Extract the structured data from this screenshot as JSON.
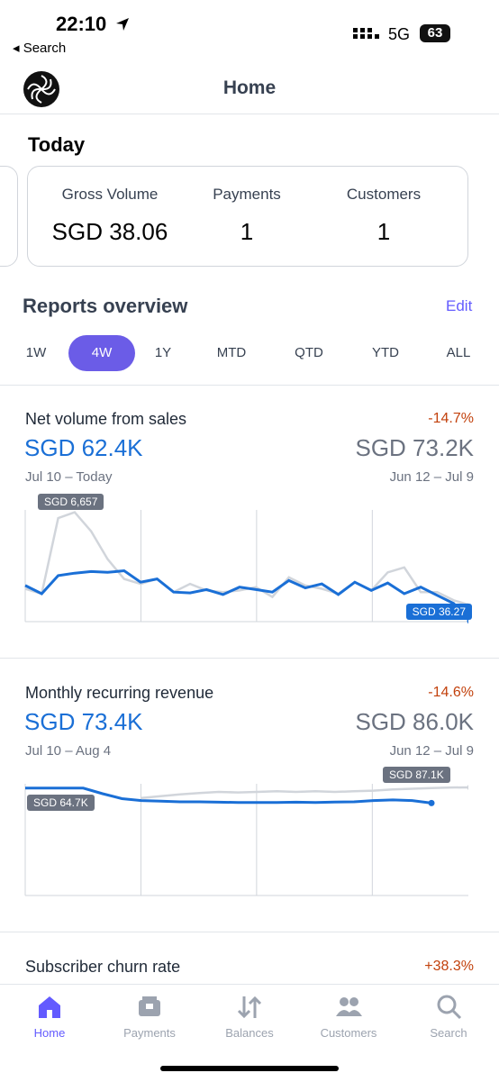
{
  "status": {
    "time": "22:10",
    "back": "◂ Search",
    "network": "5G",
    "battery": "63"
  },
  "nav": {
    "title": "Home"
  },
  "today": {
    "title": "Today",
    "metrics": [
      {
        "label": "Gross Volume",
        "value": "SGD 38.06"
      },
      {
        "label": "Payments",
        "value": "1"
      },
      {
        "label": "Customers",
        "value": "1"
      }
    ]
  },
  "reports": {
    "title": "Reports overview",
    "edit": "Edit",
    "periods": [
      "1W",
      "4W",
      "1Y",
      "MTD",
      "QTD",
      "YTD",
      "ALL"
    ],
    "active": 1
  },
  "cards": [
    {
      "title": "Net volume from sales",
      "change": "-14.7%",
      "current": "SGD 62.4K",
      "previous": "SGD 73.2K",
      "current_range": "Jul 10 – Today",
      "previous_range": "Jun 12 – Jul 9",
      "chart": {
        "type": "line",
        "ylim": [
          0,
          6800
        ],
        "annotations": [
          "SGD 6,657",
          "SGD 36.27"
        ],
        "series": [
          {
            "color": "#d1d5db",
            "values": [
              2000,
              1700,
              6300,
              6657,
              5500,
              3800,
              2600,
              2300,
              2600,
              1800,
              2300,
              1900,
              1800,
              1900,
              2100,
              1500,
              2700,
              2200,
              2000,
              1700,
              2400,
              1900,
              3000,
              3300,
              1800,
              1800,
              1300,
              1000
            ]
          },
          {
            "color": "#1a6fd6",
            "values": [
              2200,
              1700,
              2800,
              2950,
              3050,
              3000,
              3100,
              2400,
              2600,
              1800,
              1750,
              1950,
              1650,
              2100,
              1950,
              1800,
              2500,
              2050,
              2300,
              1650,
              2400,
              1900,
              2350,
              1700,
              2100,
              1600,
              1100,
              36.27
            ]
          }
        ]
      }
    },
    {
      "title": "Monthly recurring revenue",
      "change": "-14.6%",
      "current": "SGD 73.4K",
      "previous": "SGD 86.0K",
      "current_range": "Jul 10 – Aug 4",
      "previous_range": "Jun 12 – Jul 9",
      "chart": {
        "type": "line",
        "ylim": [
          0,
          90000
        ],
        "annotations": [
          "SGD 64.7K",
          "SGD 87.1K"
        ],
        "series": [
          {
            "color": "#d1d5db",
            "values": [
              null,
              null,
              null,
              null,
              null,
              null,
              78500,
              80000,
              81500,
              82500,
              83500,
              83000,
              83500,
              84000,
              83500,
              84000,
              83500,
              84000,
              84500,
              85500,
              86000,
              86500,
              87000,
              87100
            ]
          },
          {
            "color": "#1a6fd6",
            "values": [
              86500,
              86500,
              86500,
              86500,
              82000,
              78000,
              76500,
              76000,
              75500,
              75500,
              75200,
              75000,
              75000,
              75000,
              75200,
              75000,
              75300,
              75500,
              76500,
              77000,
              76500,
              74500,
              null,
              null
            ]
          }
        ]
      }
    },
    {
      "title": "Subscriber churn rate",
      "change": "+38.3%"
    }
  ],
  "tabs": [
    "Home",
    "Payments",
    "Balances",
    "Customers",
    "Search"
  ]
}
